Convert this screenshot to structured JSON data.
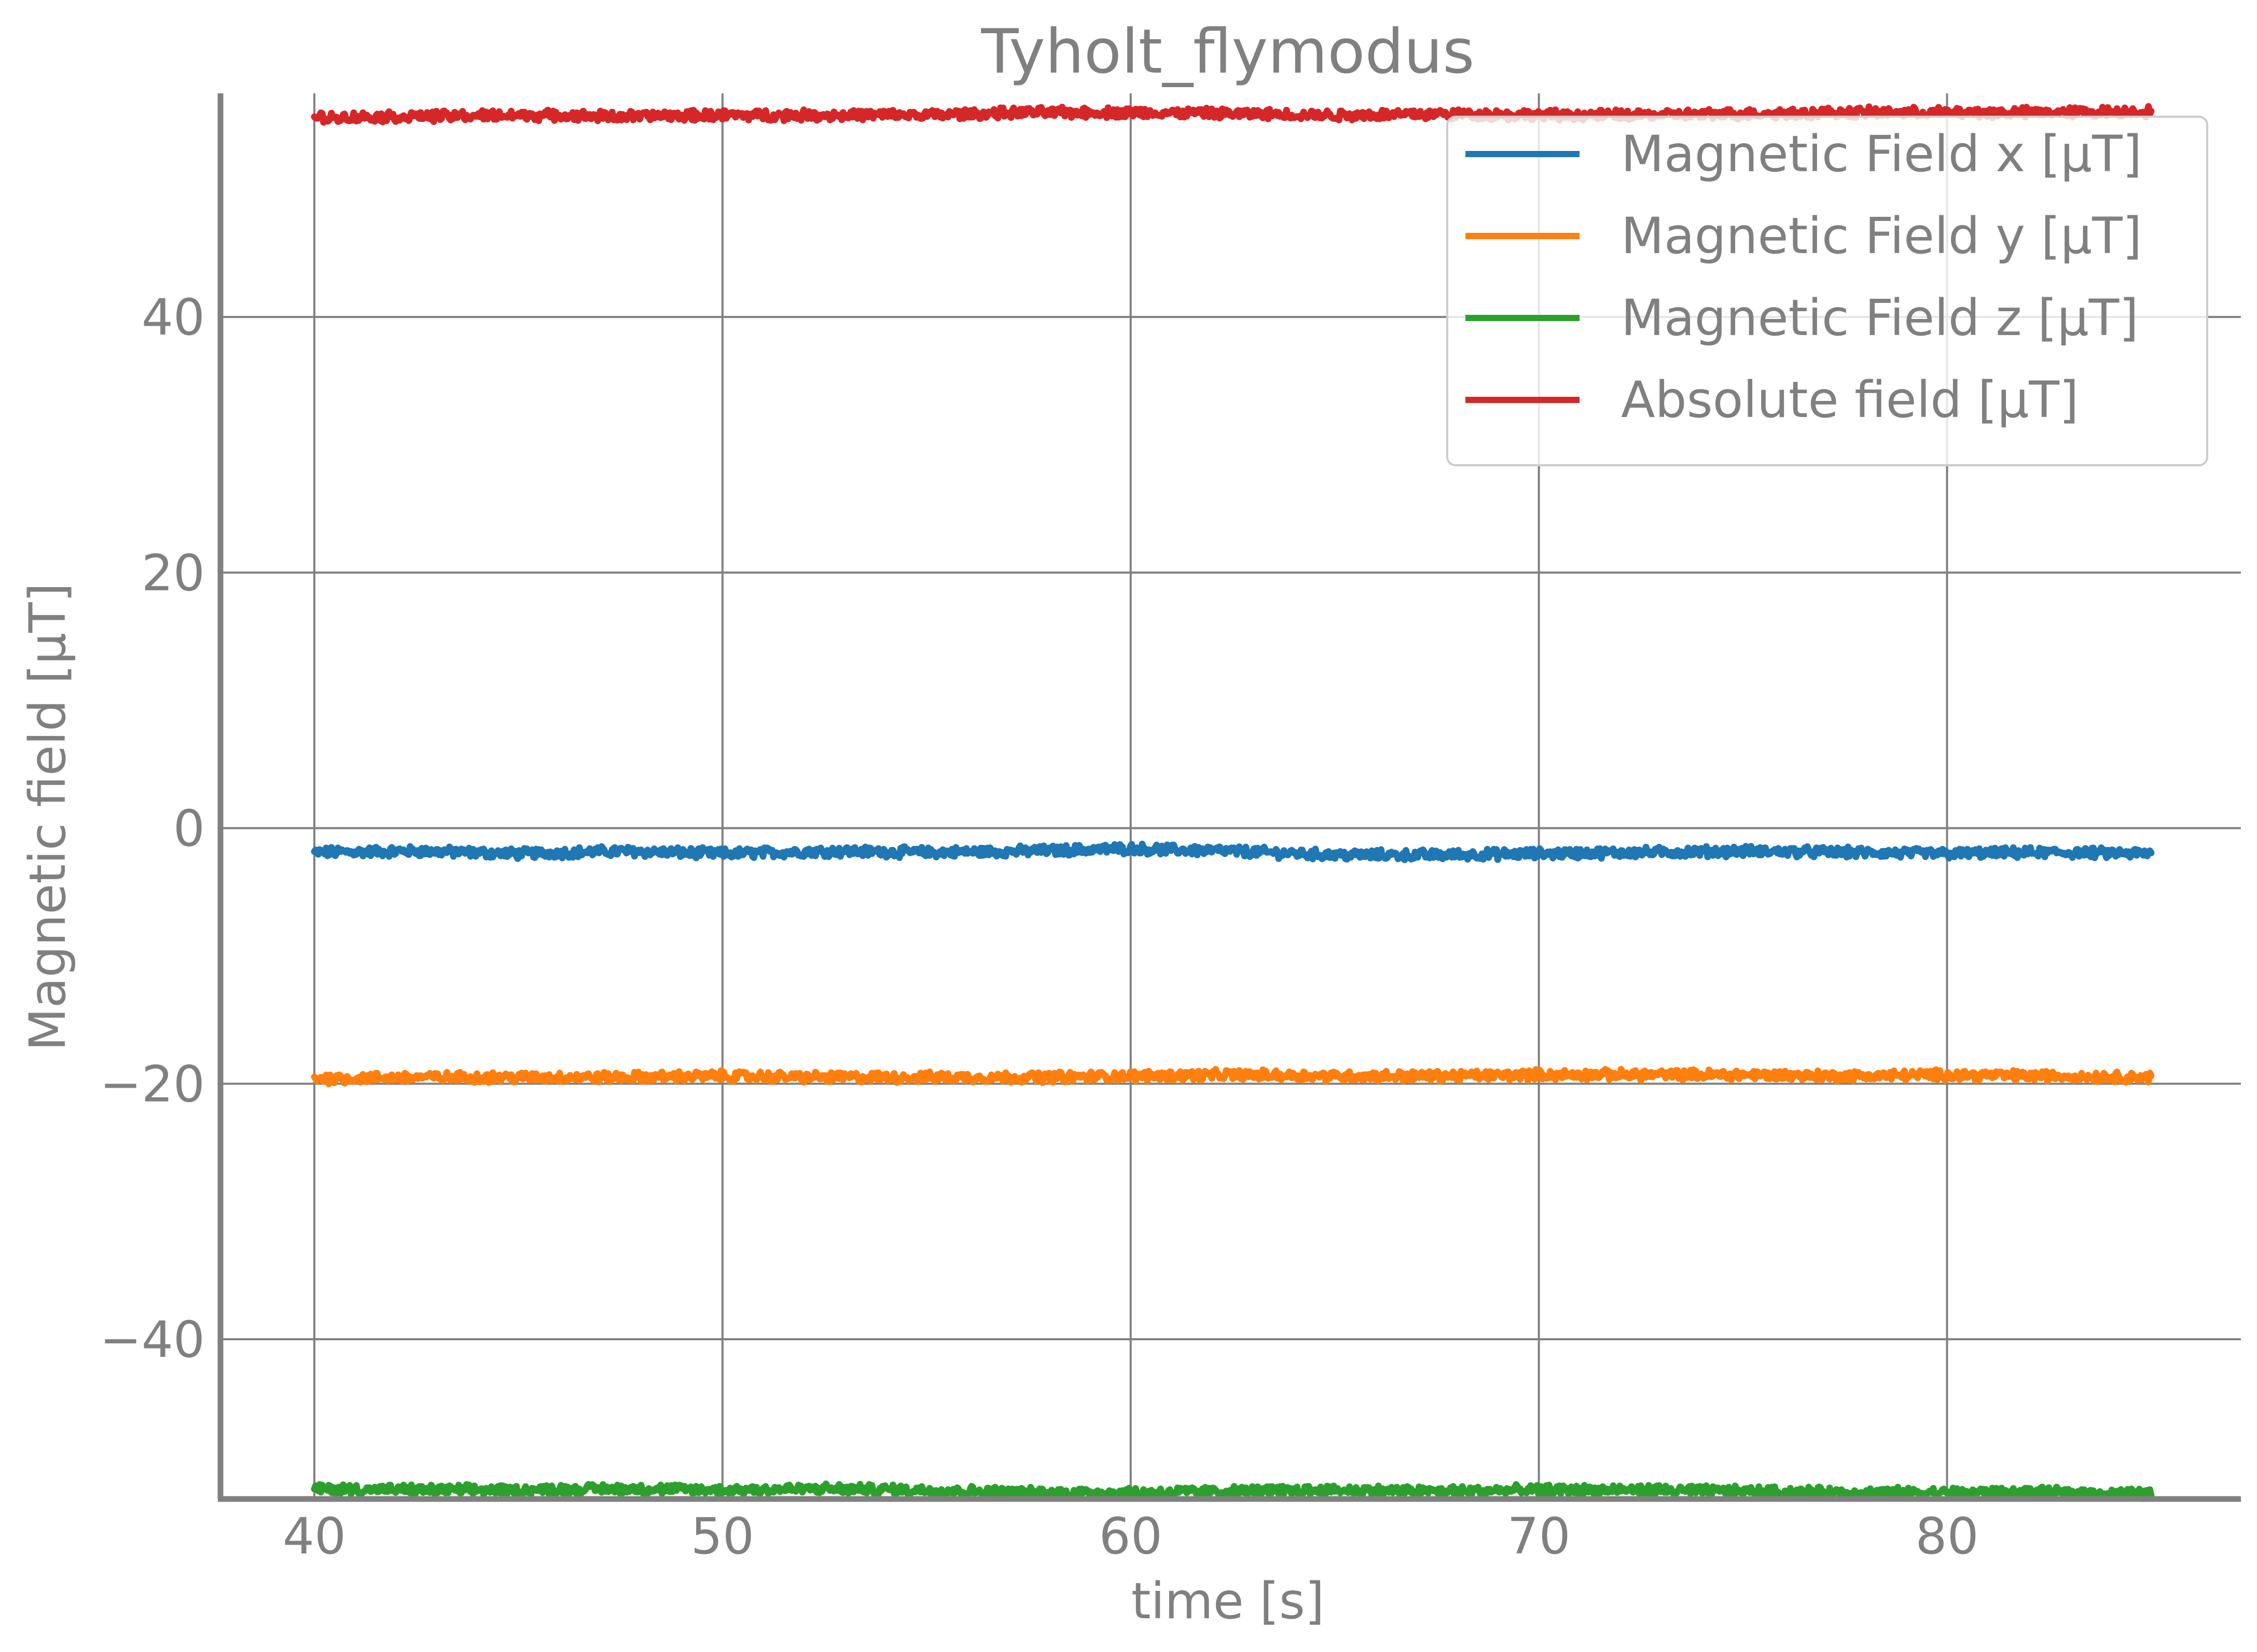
{
  "chart_data": {
    "type": "line",
    "title": "Tyholt_flymodus",
    "xlabel": "time [s]",
    "ylabel": "Magnetic field [μT]",
    "xlim": [
      37.7,
      87.2
    ],
    "ylim": [
      -52.5,
      57.5
    ],
    "xticks": [
      40,
      50,
      60,
      70,
      80
    ],
    "yticks": [
      40,
      20,
      0,
      -20,
      -40
    ],
    "xtick_labels": [
      "40",
      "50",
      "60",
      "70",
      "80"
    ],
    "ytick_labels": [
      "40",
      "20",
      "0",
      "−20",
      "−40"
    ],
    "grid": true,
    "legend_position": "top-right",
    "x_range": [
      40,
      85
    ],
    "noise_amplitude": 0.35,
    "series": [
      {
        "name": "Magnetic Field x [μT]",
        "color": "#1f77b4",
        "x": [
          40,
          42.5,
          45,
          47.5,
          50,
          52.5,
          55,
          57.5,
          60,
          61,
          62.5,
          65,
          67.5,
          70,
          72.5,
          75,
          77.5,
          80,
          82.5,
          85
        ],
        "y": [
          -1.9,
          -1.8,
          -2.0,
          -1.8,
          -2.0,
          -1.8,
          -1.9,
          -1.8,
          -1.6,
          -1.7,
          -1.8,
          -2.1,
          -2.1,
          -2.0,
          -1.9,
          -1.8,
          -1.9,
          -2.0,
          -1.9,
          -2.0
        ]
      },
      {
        "name": "Magnetic Field y [μT]",
        "color": "#ff7f0e",
        "x": [
          40,
          42.5,
          45,
          47.5,
          50,
          52.5,
          55,
          57.5,
          60,
          62.5,
          65,
          67.5,
          70,
          72.5,
          75,
          77.5,
          80,
          82.5,
          85
        ],
        "y": [
          -19.6,
          -19.5,
          -19.5,
          -19.5,
          -19.4,
          -19.5,
          -19.5,
          -19.5,
          -19.4,
          -19.3,
          -19.4,
          -19.4,
          -19.3,
          -19.3,
          -19.3,
          -19.4,
          -19.3,
          -19.4,
          -19.5
        ]
      },
      {
        "name": "Magnetic Field z [μT]",
        "color": "#2ca02c",
        "x": [
          40,
          42.5,
          45,
          47.5,
          50,
          52.5,
          55,
          57.5,
          60,
          62.5,
          65,
          67.5,
          70,
          72.5,
          75,
          77.5,
          80,
          82.5,
          85
        ],
        "y": [
          -51.7,
          -51.8,
          -51.8,
          -51.7,
          -51.8,
          -51.7,
          -51.8,
          -52.0,
          -52.0,
          -51.9,
          -51.8,
          -51.9,
          -51.8,
          -51.8,
          -51.9,
          -52.0,
          -52.0,
          -52.0,
          -52.1
        ]
      },
      {
        "name": "Absolute field [μT]",
        "color": "#d62728",
        "x": [
          40,
          42.5,
          45,
          47.5,
          50,
          52.5,
          55,
          57.5,
          60,
          62.5,
          65,
          67.5,
          70,
          72.5,
          75,
          77.5,
          80,
          82.5,
          85
        ],
        "y": [
          55.6,
          55.7,
          55.8,
          55.7,
          55.8,
          55.8,
          55.8,
          56.0,
          56.0,
          55.9,
          55.8,
          55.9,
          55.8,
          55.8,
          55.9,
          56.0,
          56.0,
          56.0,
          56.1
        ]
      }
    ]
  }
}
